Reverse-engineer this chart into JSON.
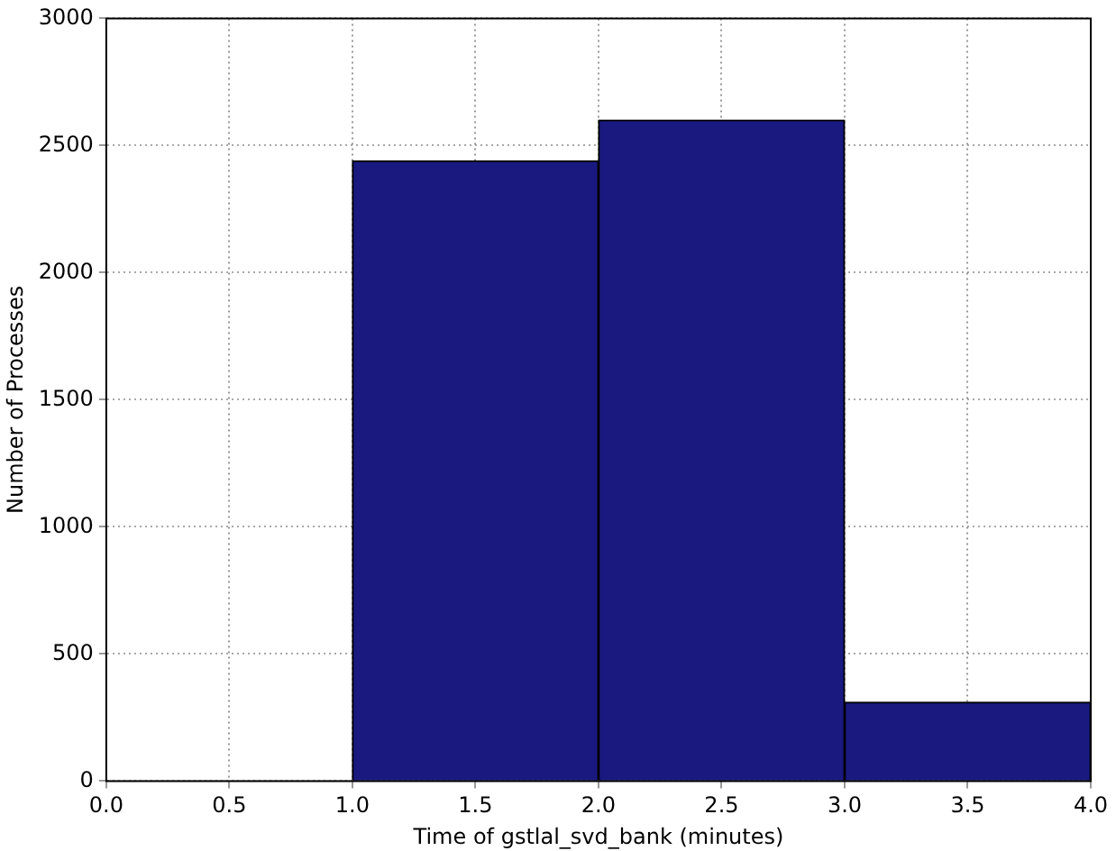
{
  "chart_data": {
    "type": "histogram",
    "xlabel": "Time of gstlal_svd_bank (minutes)",
    "ylabel": "Number of Processes",
    "bins": [
      1,
      2,
      3,
      4
    ],
    "values": [
      2440,
      2600,
      310
    ],
    "color": "#191980",
    "xlim": [
      0,
      4
    ],
    "xticks": [
      {
        "value": 0,
        "label": "0.0"
      },
      0.5,
      {
        "value": 1,
        "label": "1.0"
      },
      1.5,
      {
        "value": 2,
        "label": "2.0"
      },
      2.5,
      {
        "value": 3,
        "label": "3.0"
      },
      3.5,
      {
        "value": 4,
        "label": "4.0"
      }
    ],
    "ylim": [
      0,
      3000
    ],
    "yticks": [
      0,
      500,
      1000,
      1500,
      2000,
      2500,
      3000
    ],
    "grid": true
  }
}
